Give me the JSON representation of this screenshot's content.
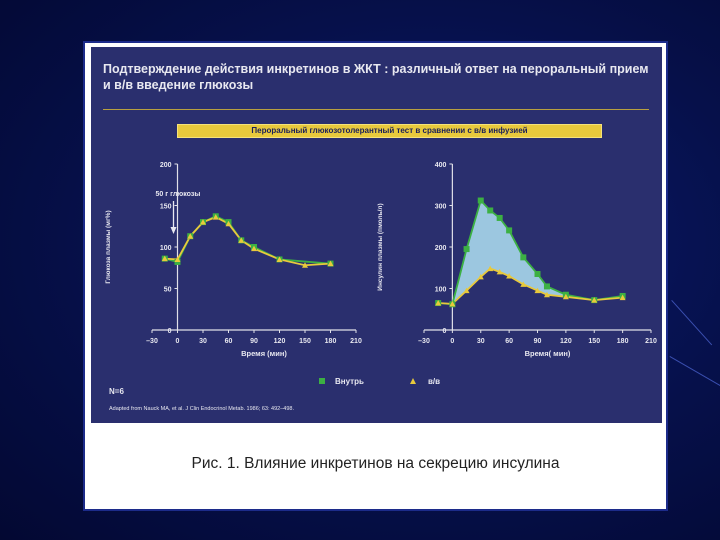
{
  "slide": {
    "title": "Подтверждение действия инкретинов  в ЖКТ : различный ответ на пероральный прием и в/в введение глюкозы",
    "subtitle": "Пероральный глюкозотолерантный тест в сравнении с в/в инфузией",
    "caption": "Рис. 1. Влияние инкретинов на секрецию инсулина",
    "n_label": "N=6",
    "source": "Adapted from Nauck MA, et al. J Clin Endocrinol Metab. 1986; 63: 492–498.",
    "legend": {
      "oral": "Внутрь",
      "iv": "в/в"
    }
  },
  "colors": {
    "oral": "#3cb043",
    "iv": "#e8c93c",
    "fill": "#a9d8ec",
    "panel": "#2a2f6e"
  },
  "chart_data": [
    {
      "type": "line",
      "ylabel": "Глюкоза плазмы (мг%)",
      "xlabel": "Время (мин)",
      "annotation": "50 г глюкозы",
      "xlim": [
        -30,
        210
      ],
      "ylim": [
        0,
        200
      ],
      "xticks": [
        -30,
        0,
        30,
        60,
        90,
        120,
        150,
        180,
        210
      ],
      "xtick_labels": [
        "–30",
        "0",
        "30",
        "60",
        "90",
        "120",
        "150",
        "180",
        "210"
      ],
      "yticks": [
        0,
        50,
        100,
        150,
        200
      ],
      "ytick_labels": [
        "0",
        "50",
        "100",
        "150",
        "200"
      ],
      "series": [
        {
          "name": "Внутрь",
          "x": [
            -15,
            0,
            15,
            30,
            45,
            60,
            75,
            90,
            120,
            180
          ],
          "y": [
            86,
            82,
            113,
            130,
            137,
            130,
            108,
            100,
            85,
            80
          ]
        },
        {
          "name": "в/в",
          "x": [
            -15,
            0,
            15,
            30,
            45,
            60,
            75,
            90,
            120,
            150,
            180
          ],
          "y": [
            86,
            85,
            113,
            130,
            136,
            128,
            108,
            98,
            85,
            78,
            80
          ]
        }
      ]
    },
    {
      "type": "area",
      "ylabel": "Инсулин плазмы (пмоль/л)",
      "xlabel": "Время( мин)",
      "xlim": [
        -30,
        210
      ],
      "ylim": [
        0,
        400
      ],
      "xticks": [
        -30,
        0,
        30,
        60,
        90,
        120,
        150,
        180,
        210
      ],
      "xtick_labels": [
        "–30",
        "0",
        "30",
        "60",
        "90",
        "120",
        "150",
        "180",
        "210"
      ],
      "yticks": [
        0,
        100,
        200,
        300,
        400
      ],
      "ytick_labels": [
        "0",
        "100",
        "200",
        "300",
        "400"
      ],
      "series": [
        {
          "name": "Внутрь",
          "x": [
            -15,
            0,
            15,
            30,
            40,
            50,
            60,
            75,
            90,
            100,
            120,
            150,
            180
          ],
          "y": [
            65,
            62,
            195,
            312,
            288,
            270,
            240,
            175,
            135,
            105,
            85,
            72,
            82
          ]
        },
        {
          "name": "в/в",
          "x": [
            -15,
            0,
            15,
            30,
            40,
            50,
            60,
            75,
            90,
            100,
            120,
            150,
            180
          ],
          "y": [
            65,
            63,
            95,
            128,
            148,
            140,
            130,
            110,
            95,
            85,
            80,
            72,
            78
          ]
        }
      ]
    }
  ]
}
